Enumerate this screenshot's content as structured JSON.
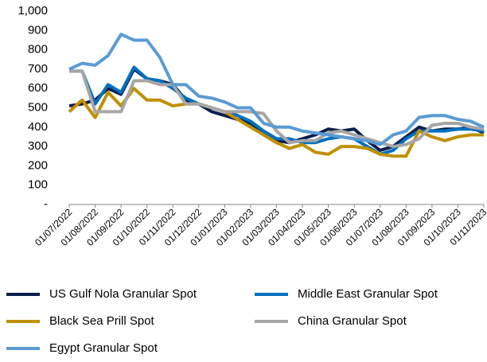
{
  "chart_data": {
    "type": "line",
    "categories": [
      "01/07/2022",
      null,
      "01/08/2022",
      null,
      "01/09/2022",
      null,
      "01/10/2022",
      null,
      "01/11/2022",
      null,
      "01/12/2022",
      null,
      "01/01/2023",
      null,
      "01/02/2023",
      null,
      "01/03/2023",
      null,
      "01/04/2023",
      null,
      "01/05/2023",
      null,
      "01/06/2023",
      null,
      "01/07/2023",
      null,
      "01/08/2023",
      null,
      "01/09/2023",
      null,
      "01/10/2023",
      null,
      "01/11/2023"
    ],
    "series": [
      {
        "name": "US Gulf Nola Granular Spot",
        "color": "#0b1f4b",
        "values": [
          510,
          520,
          540,
          600,
          570,
          700,
          650,
          640,
          620,
          540,
          520,
          480,
          460,
          440,
          420,
          370,
          330,
          320,
          340,
          360,
          390,
          380,
          390,
          330,
          280,
          300,
          350,
          400,
          380,
          390,
          390,
          400,
          370
        ]
      },
      {
        "name": "Middle East Granular Spot",
        "color": "#0070c0",
        "values": [
          690,
          690,
          520,
          620,
          580,
          710,
          650,
          640,
          600,
          550,
          520,
          500,
          480,
          460,
          430,
          380,
          340,
          340,
          320,
          320,
          340,
          350,
          340,
          300,
          260,
          280,
          340,
          380,
          380,
          380,
          390,
          390,
          380
        ]
      },
      {
        "name": "Black Sea Prill Spot",
        "color": "#bf9000",
        "values": [
          480,
          540,
          450,
          580,
          510,
          600,
          540,
          540,
          510,
          520,
          520,
          500,
          480,
          440,
          400,
          360,
          320,
          290,
          310,
          270,
          260,
          300,
          300,
          290,
          260,
          250,
          250,
          380,
          350,
          330,
          350,
          360,
          360
        ]
      },
      {
        "name": "China Granular Spot",
        "color": "#a6a6a6",
        "values": [
          690,
          690,
          480,
          480,
          480,
          640,
          640,
          620,
          620,
          520,
          520,
          500,
          480,
          480,
          480,
          470,
          380,
          320,
          330,
          330,
          370,
          380,
          360,
          340,
          320,
          300,
          310,
          340,
          410,
          420,
          420,
          400,
          390
        ]
      },
      {
        "name": "Egypt Granular Spot",
        "color": "#5b9bd5",
        "values": [
          700,
          730,
          720,
          770,
          880,
          850,
          850,
          760,
          620,
          620,
          560,
          550,
          530,
          500,
          500,
          420,
          400,
          400,
          380,
          370,
          360,
          350,
          340,
          330,
          310,
          360,
          380,
          450,
          460,
          460,
          440,
          430,
          400
        ]
      }
    ],
    "ylim": [
      0,
      1000
    ],
    "yticks": [
      {
        "value": 0,
        "label": "-"
      },
      100,
      200,
      300,
      400,
      500,
      600,
      700,
      800,
      900,
      {
        "value": 1000,
        "label": "1,000"
      }
    ]
  }
}
